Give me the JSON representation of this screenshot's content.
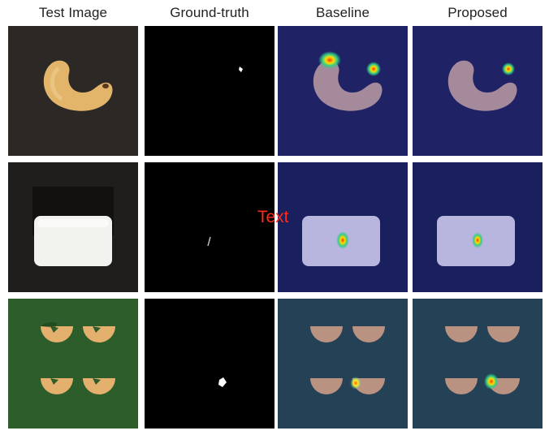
{
  "columns": [
    {
      "label": "Test Image"
    },
    {
      "label": "Ground-truth"
    },
    {
      "label": "Baseline"
    },
    {
      "label": "Proposed"
    }
  ],
  "rows": [
    {
      "object": "cashew",
      "background_color": "#2b2826"
    },
    {
      "object": "pill",
      "background_color": "#1f1e1d"
    },
    {
      "object": "pasta",
      "background_color": "#2c5d2a"
    }
  ],
  "overlay_text": "Text",
  "colors": {
    "overlay_text": "#ff2a1a",
    "heatmap_tint": "#1a1f7a",
    "ground_truth_bg": "#000000",
    "ground_truth_mask": "#ffffff"
  }
}
